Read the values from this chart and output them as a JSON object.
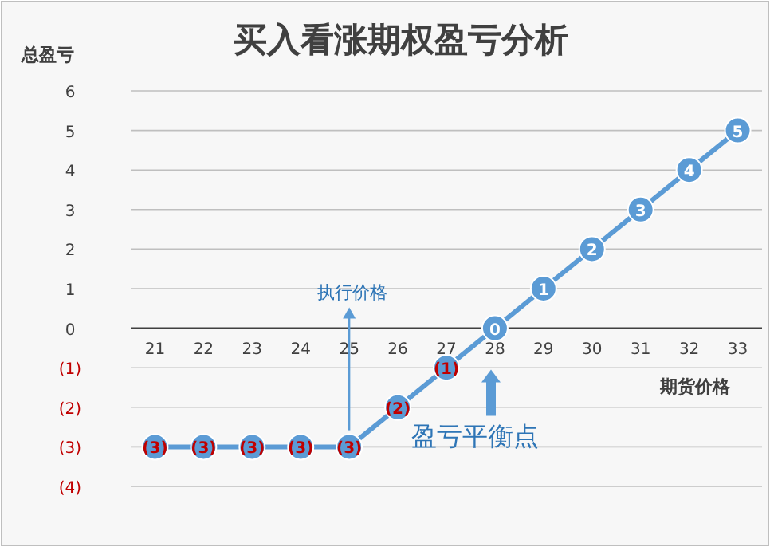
{
  "chart_data": {
    "type": "line",
    "title": "买入看涨期权盈亏分析",
    "ylabel": "总盈亏",
    "xlabel": "期货价格",
    "categories": [
      "21",
      "22",
      "23",
      "24",
      "25",
      "26",
      "27",
      "28",
      "29",
      "30",
      "31",
      "32",
      "33"
    ],
    "series": [
      {
        "color": "#5b9bd5",
        "values": [
          -3,
          -3,
          -3,
          -3,
          -3,
          -2,
          -1,
          0,
          1,
          2,
          3,
          4,
          5
        ],
        "value_labels": [
          "(3)",
          "(3)",
          "(3)",
          "(3)",
          "(3)",
          "(2)",
          "(1)",
          "0",
          "1",
          "2",
          "3",
          "4",
          "5"
        ]
      }
    ],
    "ylim": [
      -4,
      6
    ],
    "yticks": [
      6,
      5,
      4,
      3,
      2,
      1,
      0,
      {
        "value": -1,
        "label": "(1)"
      },
      {
        "value": -2,
        "label": "(2)"
      },
      {
        "value": -3,
        "label": "(3)"
      },
      {
        "value": -4,
        "label": "(4)"
      }
    ],
    "grid": "y",
    "marker": "circle",
    "line_style": "solid",
    "annotations": [
      {
        "text": "执行价格",
        "x": "25"
      },
      "盈亏平衡点"
    ]
  }
}
